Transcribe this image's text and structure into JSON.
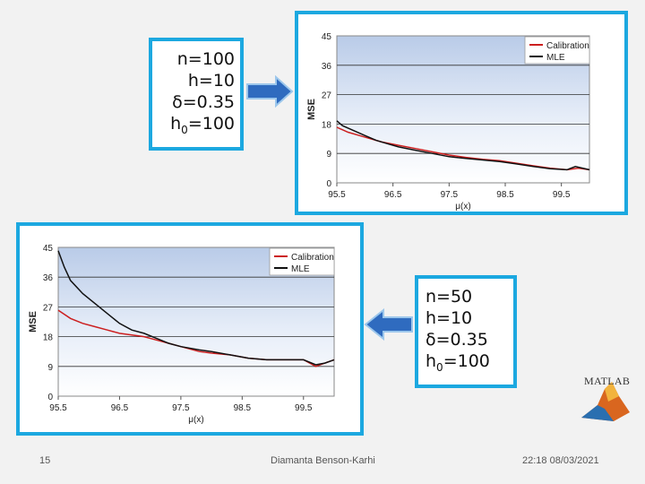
{
  "slide": {
    "page_number": "15",
    "author": "Diamanta Benson-Karhi",
    "datetime": "22:18 08/03/2021",
    "logo_text": "MATLAB"
  },
  "params_top": {
    "lines": [
      "n=100",
      "h=10",
      "δ=0.35"
    ],
    "h0_base": "h",
    "h0_sub": "0",
    "h0_val": "=100"
  },
  "params_bottom": {
    "lines": [
      "n=50",
      "h=10",
      "δ=0.35"
    ],
    "h0_base": "h",
    "h0_sub": "0",
    "h0_val": "=100"
  },
  "colors": {
    "accent_border": "#1ca8e0",
    "arrow": "#2f6bbf",
    "calibration": "#cc1f1f",
    "mle": "#111111",
    "plot_bg_top": "#b9cbe8"
  },
  "chart_data": [
    {
      "type": "line",
      "ylabel": "MSE",
      "xlabel": "μ(x)",
      "xlim": [
        95.5,
        100
      ],
      "ylim": [
        0,
        45
      ],
      "yticks": [
        0,
        9,
        18,
        27,
        36,
        45
      ],
      "ytick_labels": [
        "0",
        "9",
        "18",
        "27",
        "36",
        "45"
      ],
      "xticks": [
        95.5,
        96.5,
        97.5,
        98.5,
        99.5
      ],
      "xtick_labels": [
        "95.5",
        "96.5",
        "97.5",
        "98.5",
        "99.5"
      ],
      "legend": "top-right",
      "grid": true,
      "series": [
        {
          "name": "Calibration",
          "x": [
            95.5,
            95.7,
            95.9,
            96.1,
            96.3,
            96.6,
            96.9,
            97.2,
            97.5,
            97.8,
            98.1,
            98.4,
            98.7,
            99.0,
            99.3,
            99.6,
            99.8,
            100.0
          ],
          "values": [
            17,
            15.5,
            14.5,
            13.5,
            12.5,
            11.5,
            10.5,
            9.5,
            8.5,
            7.8,
            7.2,
            6.8,
            6.0,
            5.2,
            4.5,
            4.0,
            4.5,
            4.0
          ]
        },
        {
          "name": "MLE",
          "x": [
            95.5,
            95.6,
            95.8,
            96.0,
            96.2,
            96.4,
            96.6,
            96.9,
            97.2,
            97.5,
            97.8,
            98.1,
            98.4,
            98.7,
            99.0,
            99.3,
            99.6,
            99.75,
            100.0
          ],
          "values": [
            19,
            17.5,
            16,
            14.5,
            13,
            12,
            11,
            10,
            9,
            8,
            7.5,
            7,
            6.5,
            5.8,
            5,
            4.3,
            4,
            5,
            4
          ]
        }
      ]
    },
    {
      "type": "line",
      "ylabel": "MSE",
      "xlabel": "μ(x)",
      "xlim": [
        95.5,
        100
      ],
      "ylim": [
        0,
        45
      ],
      "yticks": [
        0,
        9,
        18,
        27,
        36,
        45
      ],
      "ytick_labels": [
        "0",
        "9",
        "18",
        "27",
        "36",
        "45"
      ],
      "xticks": [
        95.5,
        96.5,
        97.5,
        98.5,
        99.5
      ],
      "xtick_labels": [
        "95.5",
        "96.5",
        "97.5",
        "98.5",
        "99.5"
      ],
      "legend": "top-right",
      "grid": true,
      "series": [
        {
          "name": "Calibration",
          "x": [
            95.5,
            95.7,
            95.9,
            96.1,
            96.3,
            96.5,
            96.7,
            96.9,
            97.1,
            97.3,
            97.5,
            97.8,
            98.0,
            98.3,
            98.6,
            98.9,
            99.2,
            99.5,
            99.7,
            99.85,
            100.0
          ],
          "values": [
            26,
            23.5,
            22,
            21,
            20,
            19,
            18.5,
            18,
            17,
            16,
            15,
            13.5,
            13,
            12.5,
            11.5,
            11,
            11,
            11,
            9,
            10,
            11
          ]
        },
        {
          "name": "MLE",
          "x": [
            95.5,
            95.6,
            95.7,
            95.9,
            96.1,
            96.3,
            96.5,
            96.7,
            96.9,
            97.1,
            97.3,
            97.5,
            97.8,
            98.0,
            98.3,
            98.6,
            98.9,
            99.2,
            99.5,
            99.7,
            99.85,
            100.0
          ],
          "values": [
            44,
            39,
            35,
            31,
            28,
            25,
            22,
            20,
            19,
            17.5,
            16,
            15,
            14,
            13.5,
            12.5,
            11.5,
            11,
            11,
            11,
            9.5,
            10,
            11
          ]
        }
      ]
    }
  ]
}
